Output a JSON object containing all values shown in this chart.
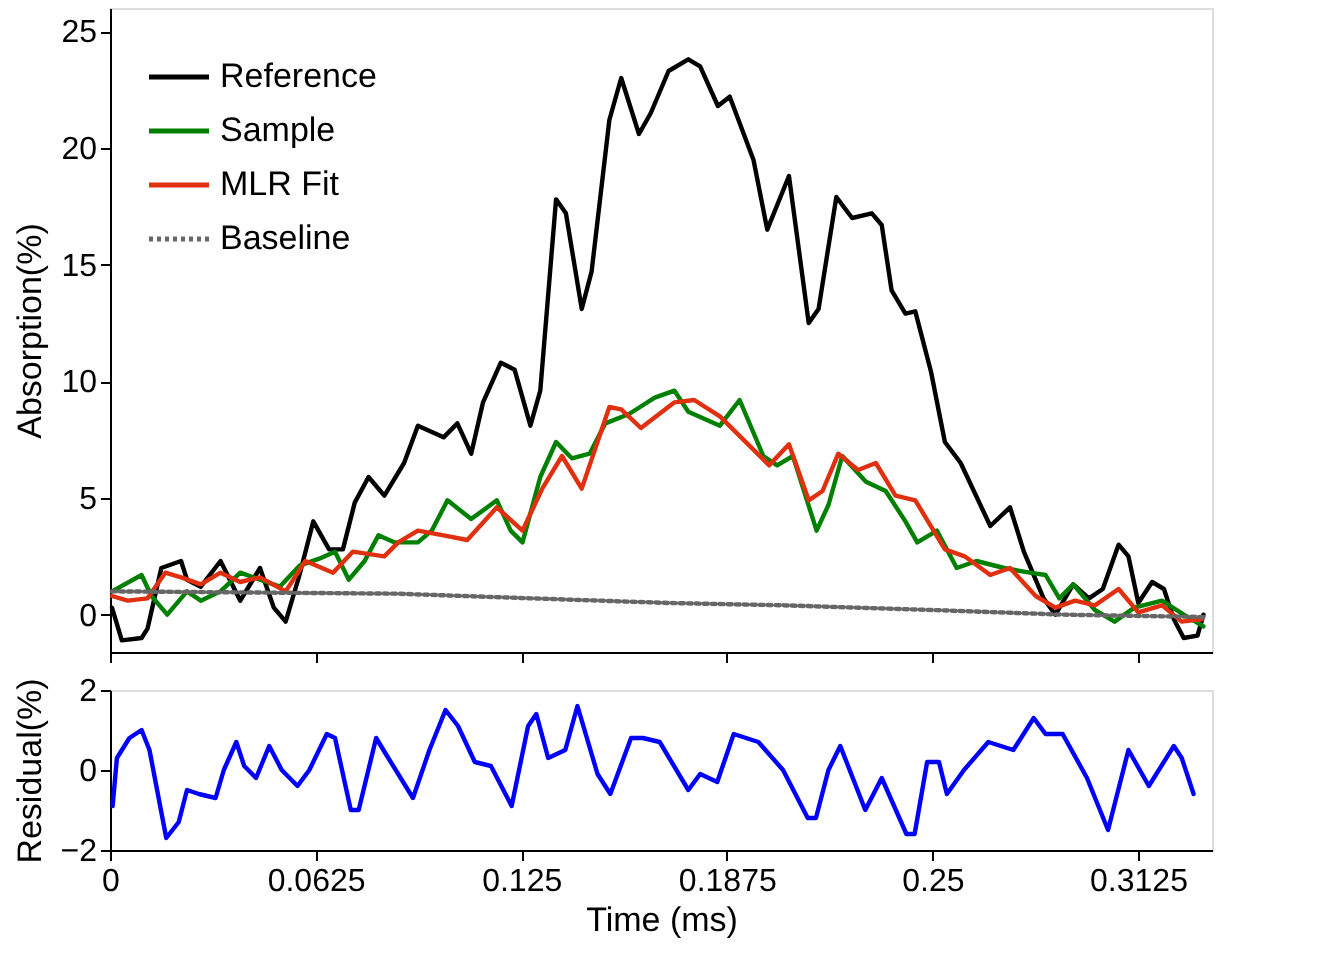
{
  "chart_data": [
    {
      "type": "line",
      "ylabel": "Absorption(%)",
      "xlim": [
        0,
        0.335
      ],
      "xticks": [
        0,
        0.0625,
        0.125,
        0.1875,
        0.25,
        0.3125
      ],
      "ylim": [
        -1.6,
        26
      ],
      "yticks": [
        0,
        5,
        10,
        15,
        20,
        25
      ],
      "tick_labels": "y",
      "legend": "top left",
      "grid": false,
      "marker": "none",
      "series": [
        {
          "name": "Reference",
          "color": "#000000",
          "line_style": "solid",
          "x": [
            0.0006,
            0.0036,
            0.0096,
            0.0114,
            0.0156,
            0.0216,
            0.0234,
            0.0276,
            0.0336,
            0.0396,
            0.0456,
            0.0498,
            0.0534,
            0.0576,
            0.0618,
            0.0666,
            0.0708,
            0.0744,
            0.0786,
            0.0834,
            0.0894,
            0.0936,
            0.1014,
            0.1056,
            0.1098,
            0.1134,
            0.1188,
            0.123,
            0.1278,
            0.1308,
            0.1356,
            0.1386,
            0.1434,
            0.1464,
            0.1518,
            0.1554,
            0.1608,
            0.1644,
            0.1698,
            0.1758,
            0.1794,
            0.1848,
            0.1884,
            0.1956,
            0.1998,
            0.2064,
            0.2124,
            0.2154,
            0.2208,
            0.2256,
            0.2316,
            0.2346,
            0.2376,
            0.2418,
            0.2448,
            0.2496,
            0.2538,
            0.2586,
            0.2676,
            0.2736,
            0.2778,
            0.2838,
            0.2874,
            0.2928,
            0.2976,
            0.3018,
            0.3066,
            0.3096,
            0.3126,
            0.3168,
            0.3204,
            0.3234,
            0.3264,
            0.3306,
            0.3324
          ],
          "values": [
            0.3,
            -1.1,
            -1.0,
            -0.6,
            2.0,
            2.3,
            1.5,
            1.2,
            2.3,
            0.6,
            2.0,
            0.3,
            -0.3,
            1.7,
            4.0,
            2.8,
            2.8,
            4.8,
            5.9,
            5.1,
            6.5,
            8.1,
            7.6,
            8.2,
            6.9,
            9.1,
            10.8,
            10.5,
            8.1,
            9.6,
            17.8,
            17.2,
            13.1,
            14.7,
            21.2,
            23.0,
            20.6,
            21.5,
            23.3,
            23.8,
            23.5,
            21.8,
            22.2,
            19.5,
            16.5,
            18.8,
            12.5,
            13.1,
            17.9,
            17.0,
            17.2,
            16.7,
            13.9,
            12.9,
            13.0,
            10.4,
            7.4,
            6.5,
            3.8,
            4.6,
            2.7,
            0.7,
            0.0,
            1.3,
            0.7,
            1.1,
            3.0,
            2.5,
            0.5,
            1.4,
            1.1,
            -0.2,
            -1.0,
            -0.9,
            0.0
          ]
        },
        {
          "name": "Sample",
          "color": "#008000",
          "line_style": "solid",
          "x": [
            0.0006,
            0.0096,
            0.0126,
            0.0174,
            0.0234,
            0.0276,
            0.0336,
            0.0396,
            0.0456,
            0.0516,
            0.0576,
            0.0636,
            0.0684,
            0.0726,
            0.0774,
            0.0816,
            0.0864,
            0.0936,
            0.0978,
            0.1026,
            0.1098,
            0.1176,
            0.1218,
            0.1254,
            0.1308,
            0.1356,
            0.1404,
            0.1458,
            0.1506,
            0.1578,
            0.1656,
            0.1716,
            0.1758,
            0.1854,
            0.1914,
            0.1986,
            0.2028,
            0.2076,
            0.2148,
            0.2184,
            0.2226,
            0.2298,
            0.2358,
            0.2418,
            0.2454,
            0.2514,
            0.2574,
            0.2634,
            0.2718,
            0.2796,
            0.2844,
            0.2886,
            0.2928,
            0.2994,
            0.3054,
            0.3114,
            0.3198,
            0.3264,
            0.3324
          ],
          "values": [
            1.0,
            1.7,
            0.8,
            0.0,
            1.0,
            0.6,
            1.0,
            1.8,
            1.5,
            1.2,
            2.1,
            2.4,
            2.7,
            1.5,
            2.3,
            3.4,
            3.1,
            3.1,
            3.6,
            4.9,
            4.1,
            4.9,
            3.6,
            3.1,
            5.9,
            7.4,
            6.7,
            6.9,
            8.2,
            8.6,
            9.3,
            9.6,
            8.7,
            8.1,
            9.2,
            6.8,
            6.4,
            6.8,
            3.6,
            4.7,
            6.8,
            5.7,
            5.3,
            4.0,
            3.1,
            3.6,
            2.0,
            2.3,
            2.0,
            1.8,
            1.7,
            0.7,
            1.3,
            0.2,
            -0.3,
            0.3,
            0.6,
            0.0,
            -0.5
          ]
        },
        {
          "name": "MLR Fit",
          "color": "#e03010",
          "line_style": "solid",
          "x": [
            0.0006,
            0.0054,
            0.0114,
            0.0168,
            0.0216,
            0.0276,
            0.0336,
            0.0396,
            0.0456,
            0.0534,
            0.0594,
            0.0678,
            0.0738,
            0.0834,
            0.0876,
            0.0936,
            0.1014,
            0.1086,
            0.1176,
            0.1254,
            0.1314,
            0.1374,
            0.1434,
            0.1518,
            0.1554,
            0.1614,
            0.1716,
            0.1776,
            0.1854,
            0.2004,
            0.2064,
            0.2124,
            0.2166,
            0.2214,
            0.2274,
            0.2328,
            0.2388,
            0.2448,
            0.2538,
            0.2598,
            0.2676,
            0.2736,
            0.2814,
            0.2874,
            0.2934,
            0.2994,
            0.3066,
            0.3126,
            0.3198,
            0.3258,
            0.3318
          ],
          "values": [
            0.8,
            0.6,
            0.7,
            1.8,
            1.6,
            1.3,
            1.8,
            1.4,
            1.6,
            1.0,
            2.3,
            1.8,
            2.7,
            2.5,
            3.1,
            3.6,
            3.4,
            3.2,
            4.6,
            3.6,
            5.4,
            6.8,
            5.4,
            8.9,
            8.8,
            8.0,
            9.1,
            9.2,
            8.5,
            6.4,
            7.3,
            4.9,
            5.3,
            6.9,
            6.2,
            6.5,
            5.1,
            4.9,
            2.8,
            2.5,
            1.7,
            2.0,
            0.8,
            0.3,
            0.6,
            0.4,
            1.1,
            0.1,
            0.4,
            -0.3,
            -0.2
          ]
        },
        {
          "name": "Baseline",
          "color": "#666666",
          "line_style": "dotted",
          "x": [
            0.0006,
            0.087,
            0.128,
            0.17,
            0.205,
            0.25,
            0.29,
            0.3324
          ],
          "values": [
            1.0,
            0.9,
            0.7,
            0.5,
            0.4,
            0.2,
            0.0,
            -0.1
          ]
        }
      ]
    },
    {
      "type": "line",
      "xlabel": "Time (ms)",
      "ylabel": "Residual(%)",
      "xlim": [
        0,
        0.335
      ],
      "xticks": [
        0,
        0.0625,
        0.125,
        0.1875,
        0.25,
        0.3125
      ],
      "ylim": [
        -2,
        2
      ],
      "yticks": [
        -2,
        0,
        2
      ],
      "legend": false,
      "grid": false,
      "marker": "none",
      "series": [
        {
          "color": "#0000ff",
          "line_style": "solid",
          "x": [
            0.0008,
            0.0021,
            0.0059,
            0.0096,
            0.012,
            0.0171,
            0.0209,
            0.0234,
            0.027,
            0.0321,
            0.0346,
            0.0384,
            0.0408,
            0.0444,
            0.0484,
            0.0522,
            0.057,
            0.0606,
            0.0659,
            0.0684,
            0.0732,
            0.0756,
            0.0809,
            0.0846,
            0.0921,
            0.0971,
            0.102,
            0.1058,
            0.1109,
            0.1158,
            0.1221,
            0.1271,
            0.1296,
            0.1332,
            0.1384,
            0.1421,
            0.1482,
            0.1521,
            0.1584,
            0.162,
            0.1671,
            0.1758,
            0.1794,
            0.1846,
            0.1896,
            0.1971,
            0.2046,
            0.2121,
            0.2146,
            0.2184,
            0.222,
            0.2296,
            0.2346,
            0.2421,
            0.2446,
            0.2484,
            0.252,
            0.2544,
            0.2596,
            0.267,
            0.2746,
            0.2808,
            0.2844,
            0.2896,
            0.297,
            0.3034,
            0.3096,
            0.3158,
            0.3234,
            0.3258,
            0.3294
          ],
          "values": [
            -0.9,
            0.3,
            0.8,
            1.0,
            0.5,
            -1.7,
            -1.3,
            -0.5,
            -0.6,
            -0.7,
            0.0,
            0.7,
            0.1,
            -0.2,
            0.6,
            0.0,
            -0.4,
            0.0,
            0.9,
            0.8,
            -1.0,
            -1.0,
            0.8,
            0.3,
            -0.7,
            0.5,
            1.5,
            1.1,
            0.2,
            0.1,
            -0.9,
            1.1,
            1.4,
            0.3,
            0.5,
            1.6,
            -0.1,
            -0.6,
            0.8,
            0.8,
            0.7,
            -0.5,
            -0.1,
            -0.3,
            0.9,
            0.7,
            0.0,
            -1.2,
            -1.2,
            0.0,
            0.6,
            -1.0,
            -0.2,
            -1.6,
            -1.6,
            0.2,
            0.2,
            -0.6,
            0.0,
            0.7,
            0.5,
            1.3,
            0.9,
            0.9,
            -0.2,
            -1.5,
            0.5,
            -0.4,
            0.6,
            0.3,
            -0.6
          ]
        }
      ]
    }
  ]
}
